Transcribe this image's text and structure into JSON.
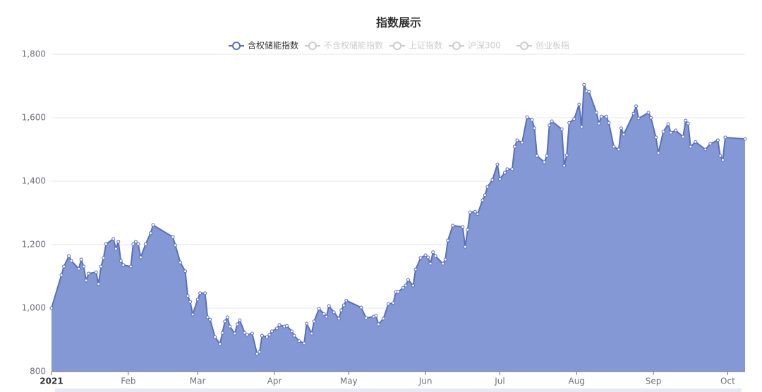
{
  "chart_data": {
    "type": "area",
    "title": "指数展示",
    "legend": [
      {
        "name": "含权储能指数",
        "active": true
      },
      {
        "name": "不含权储能指数",
        "active": false
      },
      {
        "name": "上证指数",
        "active": false
      },
      {
        "name": "沪深300",
        "active": false
      },
      {
        "name": "创业板指",
        "active": false
      }
    ],
    "x": [
      0,
      4,
      5,
      7,
      8,
      11,
      12,
      13,
      14,
      15,
      18,
      19,
      20,
      21,
      22,
      25,
      26,
      27,
      28,
      29,
      32,
      33,
      34,
      35,
      36,
      38,
      40,
      41,
      49,
      50,
      52,
      54,
      55,
      56,
      57,
      59,
      60,
      62,
      63,
      64,
      66,
      68,
      69,
      70,
      71,
      72,
      74,
      75,
      76,
      78,
      79,
      81,
      83,
      84,
      85,
      87,
      88,
      89,
      91,
      92,
      94,
      95,
      97,
      98,
      100,
      102,
      103,
      105,
      106,
      108,
      110,
      111,
      112,
      114,
      116,
      117,
      118,
      119,
      125,
      127,
      130,
      131,
      132,
      134,
      136,
      138,
      139,
      140,
      142,
      143,
      144,
      146,
      147,
      149,
      151,
      152,
      153,
      154,
      155,
      158,
      159,
      160,
      162,
      166,
      167,
      168,
      169,
      171,
      172,
      174,
      175,
      176,
      178,
      180,
      181,
      183,
      184,
      186,
      187,
      188,
      190,
      192,
      194,
      195,
      196,
      199,
      200,
      201,
      202,
      206,
      207,
      208,
      209,
      211,
      213,
      214,
      215,
      216,
      217,
      220,
      221,
      222,
      224,
      225,
      227,
      229,
      230,
      231,
      235,
      236,
      237,
      241,
      242,
      244,
      245,
      247,
      249,
      250,
      252,
      255,
      256,
      257,
      258,
      260,
      264,
      266,
      269,
      270,
      271,
      272,
      280
    ],
    "series": [
      {
        "name": "含权储能指数",
        "color": "#5b6fb8",
        "fill": "#8498d5",
        "values": [
          1000,
          1104,
          1131,
          1164,
          1149,
          1124,
          1153,
          1131,
          1087,
          1109,
          1113,
          1076,
          1131,
          1158,
          1202,
          1218,
          1187,
          1209,
          1149,
          1136,
          1131,
          1202,
          1209,
          1202,
          1160,
          1202,
          1236,
          1262,
          1224,
          1198,
          1144,
          1116,
          1038,
          1020,
          980,
          1027,
          1047,
          1047,
          971,
          964,
          909,
          887,
          922,
          958,
          971,
          942,
          920,
          949,
          962,
          922,
          916,
          920,
          856,
          862,
          913,
          909,
          916,
          927,
          936,
          947,
          942,
          944,
          927,
          913,
          896,
          889,
          951,
          920,
          958,
          998,
          982,
          973,
          1007,
          987,
          967,
          993,
          1009,
          1024,
          1002,
          969,
          973,
          976,
          949,
          967,
          1013,
          1016,
          1051,
          1051,
          1064,
          1071,
          1089,
          1071,
          1122,
          1158,
          1167,
          1160,
          1140,
          1176,
          1164,
          1140,
          1153,
          1213,
          1260,
          1256,
          1193,
          1247,
          1302,
          1304,
          1296,
          1340,
          1356,
          1382,
          1404,
          1453,
          1407,
          1427,
          1438,
          1438,
          1509,
          1529,
          1522,
          1602,
          1593,
          1567,
          1480,
          1460,
          1480,
          1576,
          1589,
          1564,
          1449,
          1482,
          1584,
          1596,
          1642,
          1571,
          1704,
          1684,
          1682,
          1616,
          1582,
          1604,
          1604,
          1584,
          1509,
          1500,
          1567,
          1547,
          1613,
          1636,
          1598,
          1616,
          1600,
          1538,
          1489,
          1556,
          1580,
          1553,
          1560,
          1540,
          1591,
          1582,
          1509,
          1524,
          1500,
          1518,
          1529,
          1480,
          1467,
          1538,
          1533
        ]
      }
    ],
    "xlim": [
      0,
      280
    ],
    "xticks": [
      {
        "value": 0,
        "label": "2021"
      },
      {
        "value": 31,
        "label": "Feb"
      },
      {
        "value": 59,
        "label": "Mar"
      },
      {
        "value": 90,
        "label": "Apr"
      },
      {
        "value": 120,
        "label": "May"
      },
      {
        "value": 151,
        "label": "Jun"
      },
      {
        "value": 181,
        "label": "Jul"
      },
      {
        "value": 212,
        "label": "Aug"
      },
      {
        "value": 243,
        "label": "Sep"
      },
      {
        "value": 273,
        "label": "Oct"
      }
    ],
    "ylim": [
      800,
      1800
    ],
    "yticks": [
      {
        "value": 800,
        "label": "800"
      },
      {
        "value": 1000,
        "label": "1,000"
      },
      {
        "value": 1200,
        "label": "1,200"
      },
      {
        "value": 1400,
        "label": "1,400"
      },
      {
        "value": 1600,
        "label": "1,600"
      },
      {
        "value": 1800,
        "label": "1,800"
      }
    ],
    "grid": true
  }
}
